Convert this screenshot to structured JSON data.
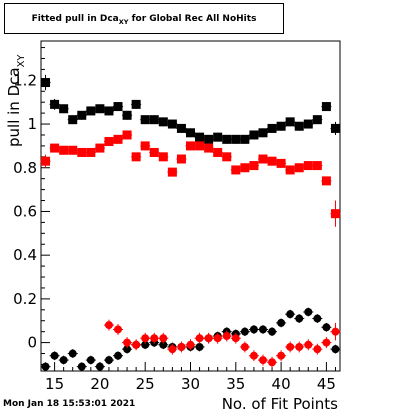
{
  "title": {
    "prefix": "Fitted pull in Dca",
    "subscript": "XY",
    "suffix": " for Global Rec All NoHits"
  },
  "footer": {
    "timestamp": "Mon Jan 18 15:53:01 2021"
  },
  "chart_data": {
    "type": "scatter",
    "xlabel": "No. of Fit Points",
    "ylabel": "pull in Dca",
    "ylabel_subscript": "XY",
    "xlim": [
      13.5,
      46.5
    ],
    "ylim": [
      -0.13,
      1.38
    ],
    "x_ticks": [
      15,
      20,
      25,
      30,
      35,
      40,
      45
    ],
    "y_ticks": [
      0,
      0.2,
      0.4,
      0.6,
      0.8,
      1,
      1.2
    ],
    "x": [
      14,
      15,
      16,
      17,
      18,
      19,
      20,
      21,
      22,
      23,
      24,
      25,
      26,
      27,
      28,
      29,
      30,
      31,
      32,
      33,
      34,
      35,
      36,
      37,
      38,
      39,
      40,
      41,
      42,
      43,
      44,
      45,
      46
    ],
    "series": [
      {
        "color": "#000000",
        "marker": "square",
        "values": [
          1.19,
          1.09,
          1.07,
          1.02,
          1.04,
          1.06,
          1.07,
          1.06,
          1.08,
          1.04,
          1.09,
          1.02,
          1.02,
          1.01,
          1.0,
          0.98,
          0.96,
          0.94,
          0.93,
          0.94,
          0.93,
          0.93,
          0.93,
          0.95,
          0.96,
          0.98,
          0.99,
          1.01,
          0.99,
          1.0,
          1.02,
          1.08,
          0.98
        ],
        "errors": [
          0.035,
          0.025,
          0.02,
          0.02,
          0.02,
          0.02,
          0.02,
          0.02,
          0.02,
          0.02,
          0.02,
          0.02,
          0.02,
          0.02,
          0.02,
          0.02,
          0.02,
          0.02,
          0.02,
          0.02,
          0.02,
          0.02,
          0.02,
          0.02,
          0.02,
          0.02,
          0.02,
          0.02,
          0.02,
          0.02,
          0.02,
          0.02,
          0.03
        ]
      },
      {
        "color": "#ff0000",
        "marker": "square",
        "values": [
          0.83,
          0.89,
          0.88,
          0.88,
          0.87,
          0.87,
          0.89,
          0.92,
          0.93,
          0.95,
          0.85,
          0.9,
          0.87,
          0.85,
          0.78,
          0.84,
          0.9,
          0.9,
          0.89,
          0.87,
          0.85,
          0.79,
          0.8,
          0.81,
          0.84,
          0.83,
          0.82,
          0.79,
          0.8,
          0.81,
          0.81,
          0.74,
          0.59
        ],
        "errors": [
          0.03,
          0.02,
          0.02,
          0.02,
          0.02,
          0.02,
          0.02,
          0.02,
          0.02,
          0.02,
          0.02,
          0.02,
          0.02,
          0.02,
          0.02,
          0.02,
          0.02,
          0.02,
          0.02,
          0.02,
          0.02,
          0.02,
          0.02,
          0.02,
          0.02,
          0.02,
          0.02,
          0.02,
          0.02,
          0.02,
          0.02,
          0.02,
          0.06
        ]
      },
      {
        "color": "#000000",
        "marker": "circle",
        "values": [
          -0.11,
          -0.06,
          -0.08,
          -0.05,
          -0.11,
          -0.08,
          -0.11,
          -0.08,
          -0.06,
          -0.03,
          -0.01,
          -0.01,
          0.0,
          -0.01,
          -0.02,
          -0.02,
          -0.02,
          -0.02,
          0.02,
          0.03,
          0.05,
          0.04,
          0.05,
          0.06,
          0.06,
          0.05,
          0.09,
          0.13,
          0.11,
          0.14,
          0.11,
          0.07,
          -0.03
        ],
        "errors": [
          0.02,
          0.02,
          0.02,
          0.02,
          0.02,
          0.02,
          0.02,
          0.02,
          0.02,
          0.02,
          0.02,
          0.02,
          0.02,
          0.02,
          0.02,
          0.02,
          0.02,
          0.02,
          0.02,
          0.02,
          0.02,
          0.02,
          0.02,
          0.02,
          0.02,
          0.02,
          0.02,
          0.02,
          0.02,
          0.02,
          0.02,
          0.02,
          0.02
        ]
      },
      {
        "color": "#ff0000",
        "marker": "circle",
        "values": [
          null,
          null,
          null,
          null,
          null,
          null,
          null,
          0.08,
          0.06,
          0.0,
          -0.01,
          0.02,
          0.02,
          0.02,
          -0.03,
          -0.02,
          -0.01,
          0.02,
          0.02,
          0.02,
          0.03,
          0.02,
          -0.02,
          -0.06,
          -0.08,
          -0.09,
          -0.06,
          -0.02,
          -0.02,
          -0.01,
          -0.03,
          0.0,
          0.05
        ],
        "errors": [
          0,
          0,
          0,
          0,
          0,
          0,
          0,
          0.025,
          0.025,
          0.025,
          0.025,
          0.025,
          0.025,
          0.025,
          0.025,
          0.025,
          0.025,
          0.025,
          0.025,
          0.025,
          0.025,
          0.025,
          0.025,
          0.025,
          0.025,
          0.025,
          0.025,
          0.025,
          0.025,
          0.025,
          0.025,
          0.025,
          0.04
        ]
      }
    ]
  }
}
